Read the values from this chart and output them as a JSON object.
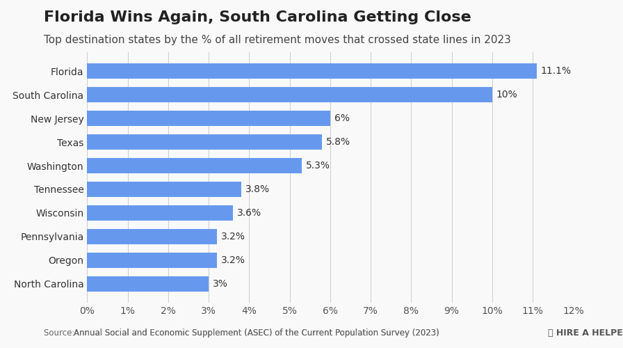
{
  "title": "Florida Wins Again, South Carolina Getting Close",
  "subtitle": "Top destination states by the % of all retirement moves that crossed state lines in 2023",
  "categories": [
    "Florida",
    "South Carolina",
    "New Jersey",
    "Texas",
    "Washington",
    "Tennessee",
    "Wisconsin",
    "Pennsylvania",
    "Oregon",
    "North Carolina"
  ],
  "values": [
    11.1,
    10.0,
    6.0,
    5.8,
    5.3,
    3.8,
    3.6,
    3.2,
    3.2,
    3.0
  ],
  "labels": [
    "11.1%",
    "10%",
    "6%",
    "5.8%",
    "5.3%",
    "3.8%",
    "3.6%",
    "3.2%",
    "3.2%",
    "3%"
  ],
  "bar_color": "#6699ee",
  "background_color": "#f9f9f9",
  "xlim": [
    0,
    12
  ],
  "xticks": [
    0,
    1,
    2,
    3,
    4,
    5,
    6,
    7,
    8,
    9,
    10,
    11,
    12
  ],
  "xtick_labels": [
    "0%",
    "1%",
    "2%",
    "3%",
    "4%",
    "5%",
    "6%",
    "7%",
    "8%",
    "9%",
    "10%",
    "11%",
    "12%"
  ],
  "source_text": "Source: ",
  "source_link": "Annual Social and Economic Supplement (ASEC) of the Current Population Survey (2023)",
  "title_fontsize": 16,
  "subtitle_fontsize": 11,
  "bar_label_fontsize": 10,
  "tick_fontsize": 10,
  "category_fontsize": 10
}
